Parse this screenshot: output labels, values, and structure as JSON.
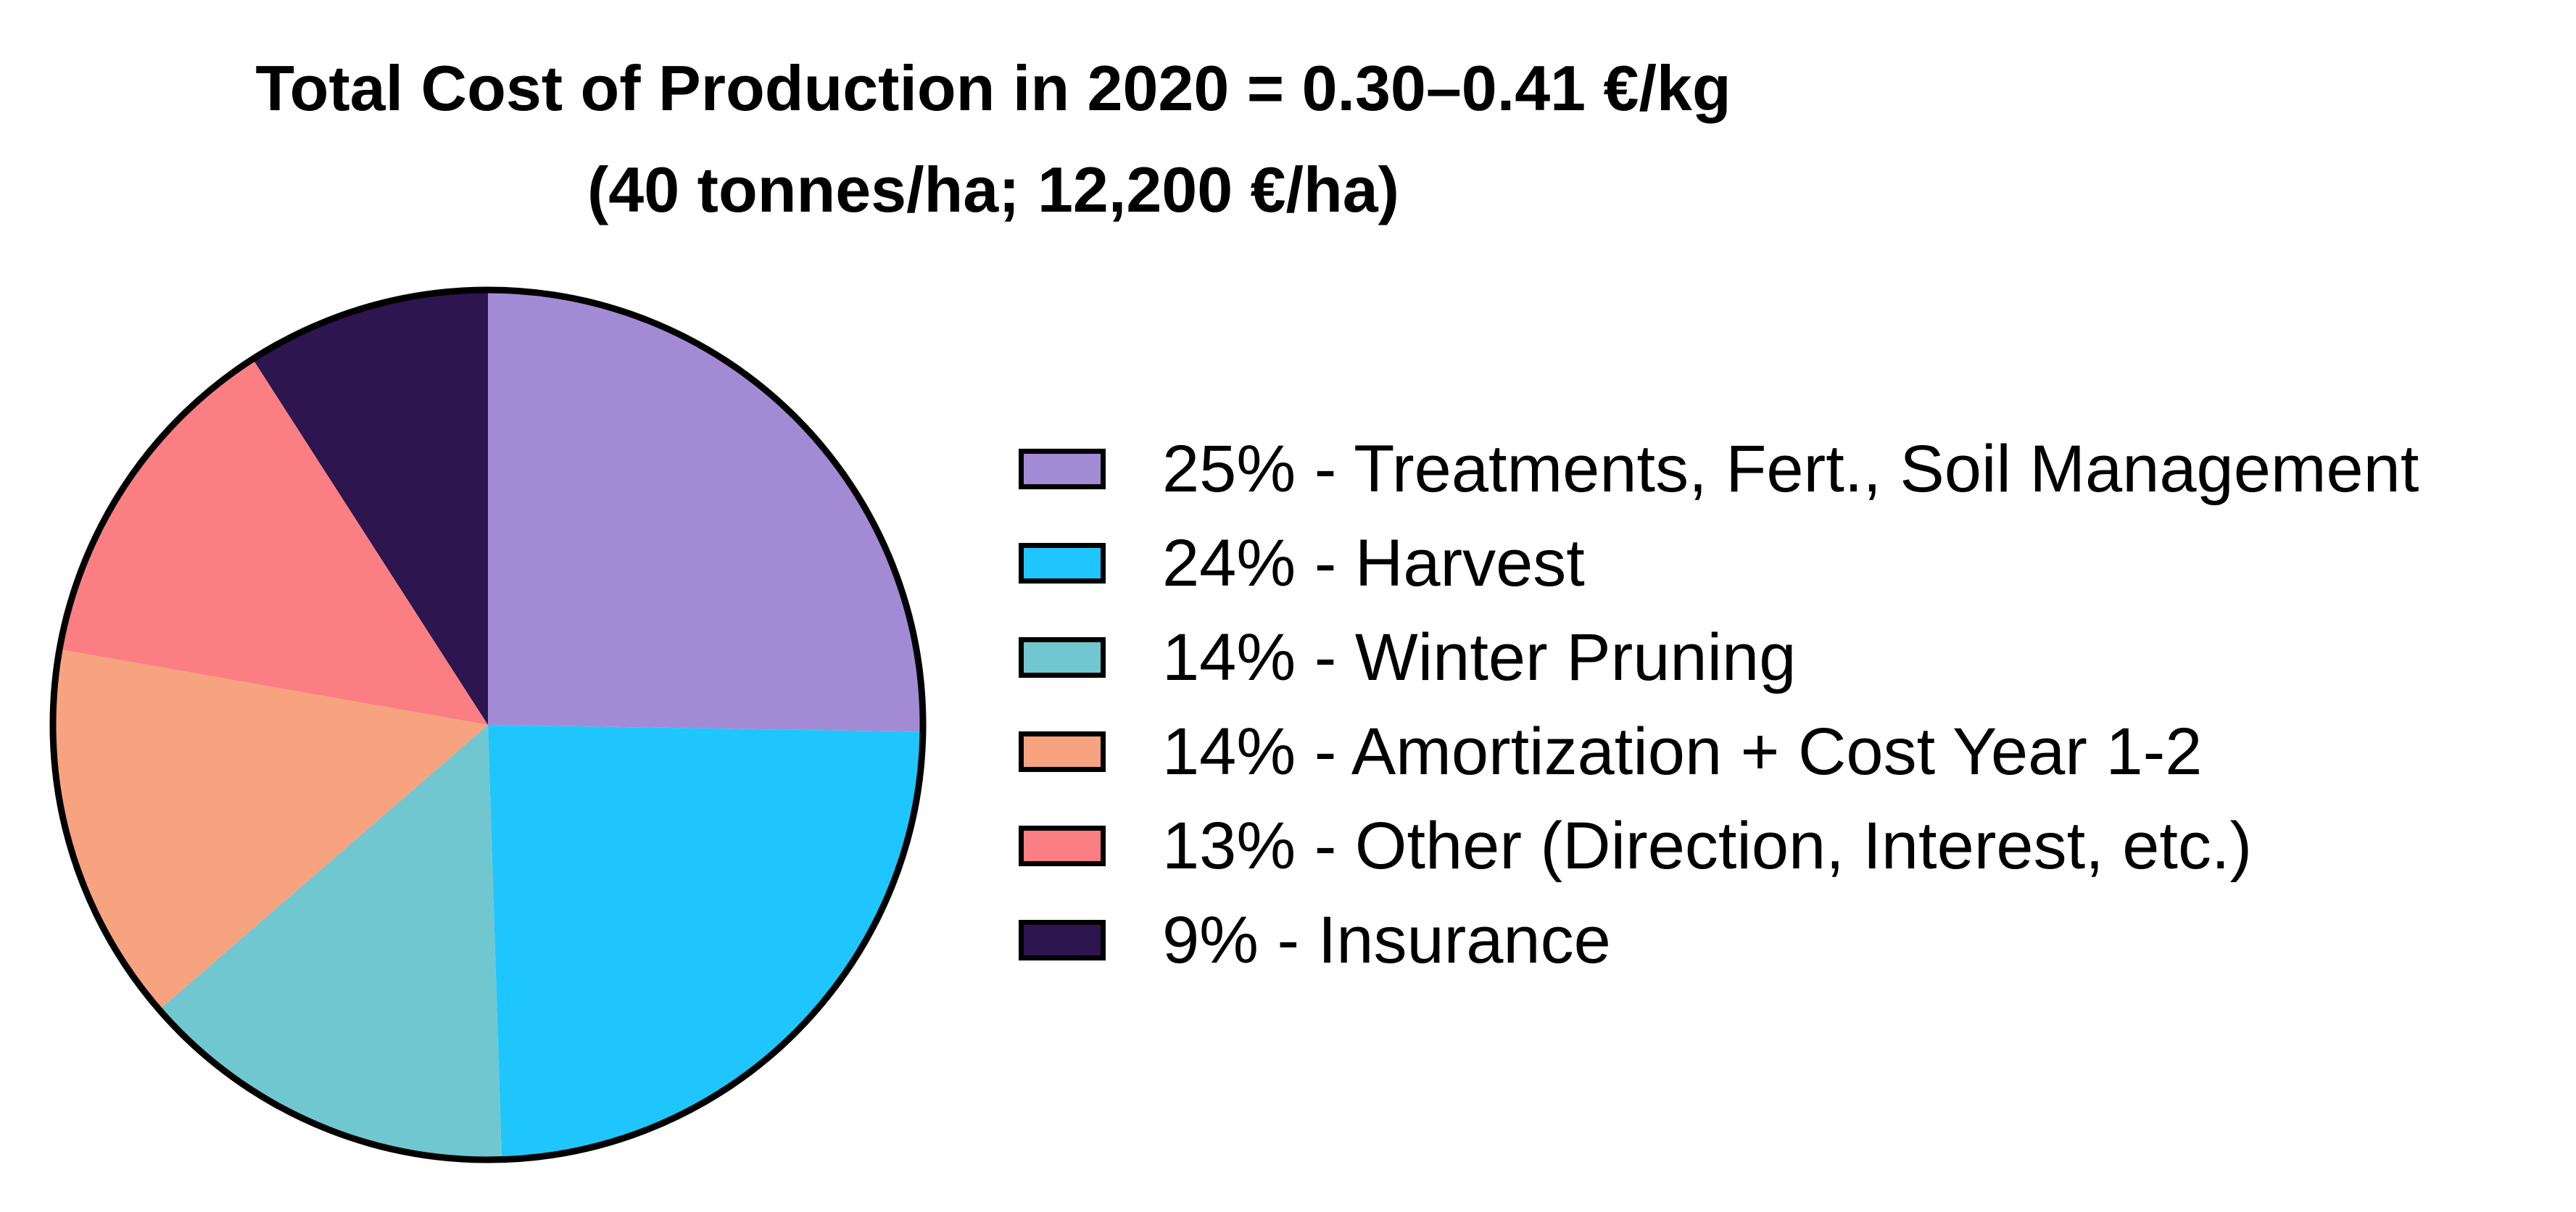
{
  "chart_data": {
    "type": "pie",
    "title": "Total Cost of Production in 2020 = 0.30–0.41 €/kg",
    "subtitle": "(40 tonnes/ha; 12,200 €/ha)",
    "legend_position": "right",
    "slices": [
      {
        "label": "25% - Treatments, Fert., Soil Management",
        "value": 25,
        "color": "#a38ad5"
      },
      {
        "label": "24% - Harvest",
        "value": 24,
        "color": "#1fc6fd"
      },
      {
        "label": "14% - Winter Pruning",
        "value": 14,
        "color": "#70c7cf"
      },
      {
        "label": "14% - Amortization + Cost Year 1-2",
        "value": 14,
        "color": "#f7a380"
      },
      {
        "label": "13% - Other (Direction, Interest, etc.)",
        "value": 13,
        "color": "#fb7f82"
      },
      {
        "label": "9% - Insurance",
        "value": 9,
        "color": "#2d1550"
      }
    ]
  }
}
